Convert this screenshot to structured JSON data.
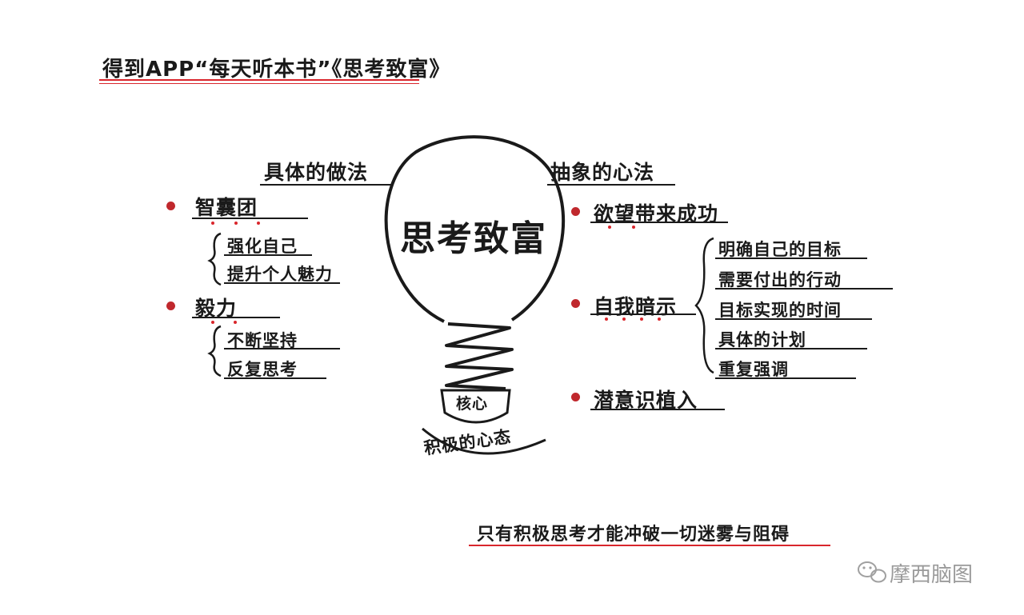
{
  "header": {
    "title": "得到APP“每天听本书”《思考致富》"
  },
  "center": {
    "bulb_title": "思考致富",
    "core_label": "核心",
    "base_arc": "积极的心态"
  },
  "left": {
    "heading": "具体的做法",
    "items": [
      {
        "label": "智囊团",
        "subs": [
          "强化自己",
          "提升个人魅力"
        ]
      },
      {
        "label": "毅力",
        "subs": [
          "不断坚持",
          "反复思考"
        ]
      }
    ]
  },
  "right": {
    "heading": "抽象的心法",
    "items": [
      {
        "label": "欲望带来成功",
        "subs": []
      },
      {
        "label": "自我暗示",
        "subs": [
          "明确自己的目标",
          "需要付出的行动",
          "目标实现的时间",
          "具体的计划",
          "重复强调"
        ]
      },
      {
        "label": "潜意识植入",
        "subs": []
      }
    ]
  },
  "footer": {
    "conclusion": "只有积极思考才能冲破一切迷雾与阻碍"
  },
  "watermark": {
    "brand": "摩西脑图",
    "icon": "wechat-icon"
  },
  "colors": {
    "accent_red": "#d9262c",
    "ink": "#1a1a1a",
    "watermark": "#9a9a9a"
  }
}
